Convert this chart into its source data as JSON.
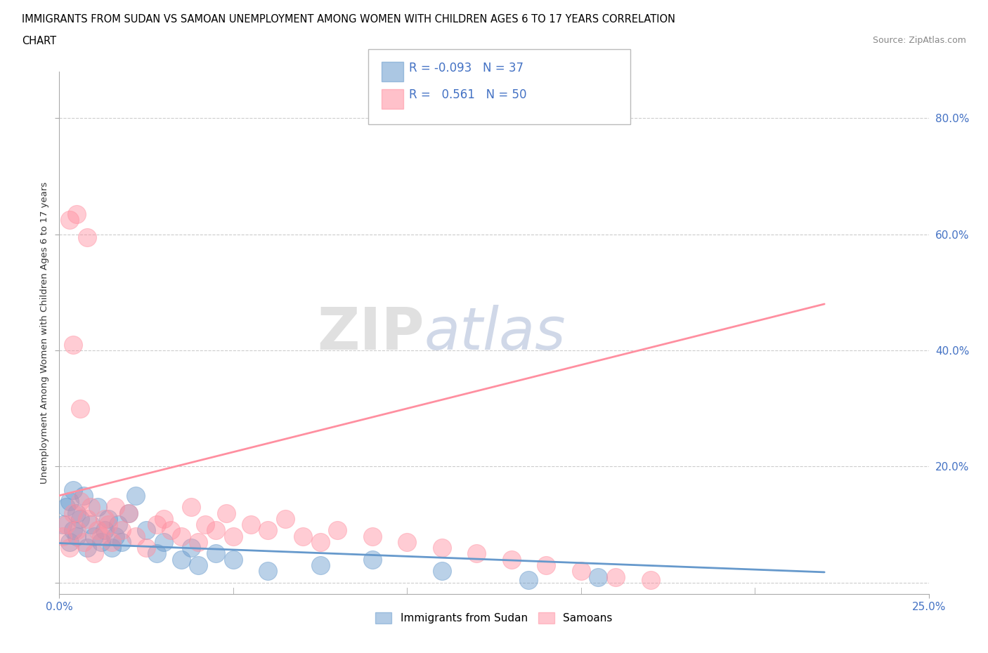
{
  "title_line1": "IMMIGRANTS FROM SUDAN VS SAMOAN UNEMPLOYMENT AMONG WOMEN WITH CHILDREN AGES 6 TO 17 YEARS CORRELATION",
  "title_line2": "CHART",
  "source": "Source: ZipAtlas.com",
  "ylabel": "Unemployment Among Women with Children Ages 6 to 17 years",
  "ytick_vals": [
    0.0,
    0.2,
    0.4,
    0.6,
    0.8
  ],
  "ytick_labels": [
    "",
    "20.0%",
    "40.0%",
    "60.0%",
    "80.0%"
  ],
  "xlim": [
    0.0,
    0.25
  ],
  "ylim": [
    -0.02,
    0.88
  ],
  "sudan_color": "#6699cc",
  "samoan_color": "#ff8fa0",
  "sudan_R": -0.093,
  "sudan_N": 37,
  "samoan_R": 0.561,
  "samoan_N": 50,
  "legend_label_sudan": "Immigrants from Sudan",
  "legend_label_samoan": "Samoans",
  "watermark_zip": "ZIP",
  "watermark_atlas": "atlas",
  "grid_color": "#cccccc",
  "sudan_trend_x": [
    0.0,
    0.22
  ],
  "sudan_trend_y": [
    0.068,
    0.018
  ],
  "samoan_trend_x": [
    0.0,
    0.22
  ],
  "samoan_trend_y": [
    0.15,
    0.48
  ],
  "sudan_x": [
    0.001,
    0.002,
    0.003,
    0.003,
    0.004,
    0.004,
    0.005,
    0.005,
    0.006,
    0.007,
    0.008,
    0.009,
    0.01,
    0.011,
    0.012,
    0.013,
    0.014,
    0.015,
    0.016,
    0.017,
    0.018,
    0.02,
    0.022,
    0.025,
    0.028,
    0.03,
    0.035,
    0.038,
    0.04,
    0.045,
    0.05,
    0.06,
    0.075,
    0.09,
    0.11,
    0.135,
    0.155
  ],
  "sudan_y": [
    0.1,
    0.13,
    0.07,
    0.14,
    0.09,
    0.16,
    0.08,
    0.12,
    0.11,
    0.15,
    0.06,
    0.1,
    0.08,
    0.13,
    0.07,
    0.09,
    0.11,
    0.06,
    0.08,
    0.1,
    0.07,
    0.12,
    0.15,
    0.09,
    0.05,
    0.07,
    0.04,
    0.06,
    0.03,
    0.05,
    0.04,
    0.02,
    0.03,
    0.04,
    0.02,
    0.005,
    0.01
  ],
  "samoan_x": [
    0.001,
    0.002,
    0.003,
    0.004,
    0.005,
    0.006,
    0.007,
    0.008,
    0.009,
    0.01,
    0.011,
    0.012,
    0.013,
    0.014,
    0.015,
    0.016,
    0.018,
    0.02,
    0.022,
    0.025,
    0.028,
    0.03,
    0.032,
    0.035,
    0.038,
    0.04,
    0.042,
    0.045,
    0.048,
    0.05,
    0.055,
    0.06,
    0.065,
    0.07,
    0.075,
    0.08,
    0.09,
    0.1,
    0.11,
    0.12,
    0.13,
    0.14,
    0.15,
    0.16,
    0.17,
    0.004,
    0.006,
    0.008,
    0.003,
    0.005
  ],
  "samoan_y": [
    0.08,
    0.1,
    0.06,
    0.12,
    0.09,
    0.14,
    0.07,
    0.11,
    0.13,
    0.05,
    0.09,
    0.08,
    0.11,
    0.1,
    0.07,
    0.13,
    0.09,
    0.12,
    0.08,
    0.06,
    0.1,
    0.11,
    0.09,
    0.08,
    0.13,
    0.07,
    0.1,
    0.09,
    0.12,
    0.08,
    0.1,
    0.09,
    0.11,
    0.08,
    0.07,
    0.09,
    0.08,
    0.07,
    0.06,
    0.05,
    0.04,
    0.03,
    0.02,
    0.01,
    0.005,
    0.41,
    0.3,
    0.595,
    0.625,
    0.635
  ]
}
